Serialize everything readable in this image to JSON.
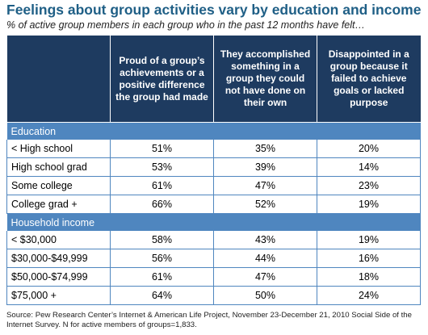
{
  "chart_data": {
    "type": "table",
    "title": "Feelings about group activities vary by education and income",
    "subtitle": "% of active group members in each group who in the past 12 months have felt…",
    "columns": [
      "Proud of a group’s achievements or a positive difference the group had made",
      "They accomplished something in a group they could not have done on their own",
      "Disappointed in a group because it failed to achieve goals or lacked purpose"
    ],
    "sections": [
      {
        "name": "Education",
        "rows": [
          {
            "label": "< High school",
            "values": [
              "51%",
              "35%",
              "20%"
            ]
          },
          {
            "label": "High school grad",
            "values": [
              "53%",
              "39%",
              "14%"
            ]
          },
          {
            "label": "Some college",
            "values": [
              "61%",
              "47%",
              "23%"
            ]
          },
          {
            "label": "College grad +",
            "values": [
              "66%",
              "52%",
              "19%"
            ]
          }
        ]
      },
      {
        "name": "Household income",
        "rows": [
          {
            "label": "< $30,000",
            "values": [
              "58%",
              "43%",
              "19%"
            ]
          },
          {
            "label": "$30,000-$49,999",
            "values": [
              "56%",
              "44%",
              "16%"
            ]
          },
          {
            "label": "$50,000-$74,999",
            "values": [
              "61%",
              "47%",
              "18%"
            ]
          },
          {
            "label": "$75,000 +",
            "values": [
              "64%",
              "50%",
              "24%"
            ]
          }
        ]
      }
    ],
    "source": "Source: Pew Research Center’s Internet & American Life Project, November 23-December 21, 2010 Social Side of the Internet Survey. N for active members of groups=1,833."
  },
  "colors": {
    "title": "#1f5f86",
    "header_bg": "#1e3b60",
    "section_bg": "#4f86bf",
    "grid": "#4f86bf"
  }
}
